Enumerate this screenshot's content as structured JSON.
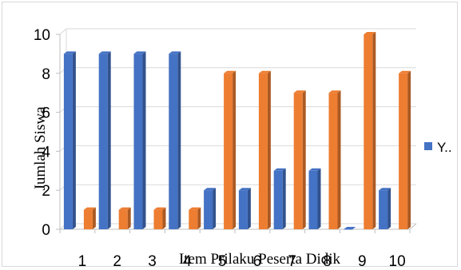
{
  "chart_data": {
    "type": "bar",
    "style": "3d-clustered-column",
    "categories": [
      "1",
      "2",
      "3",
      "4",
      "5",
      "6",
      "7",
      "8",
      "9",
      "10"
    ],
    "series": [
      {
        "name": "",
        "color": "#4472c4",
        "values": [
          9,
          9,
          9,
          9,
          2,
          2,
          3,
          3,
          0,
          2
        ]
      },
      {
        "name": "",
        "color": "#ed7d31",
        "values": [
          1,
          1,
          1,
          1,
          8,
          8,
          7,
          7,
          10,
          8
        ]
      }
    ],
    "title": "",
    "xlabel": "Item Prilaku Peserta Didik",
    "ylabel": "Jumlah Siswa",
    "ylim": [
      0,
      10
    ],
    "yticks": [
      "0",
      "2",
      "4",
      "6",
      "8",
      "10"
    ],
    "grid": true,
    "legend": {
      "position": "right",
      "entries": [
        "Y.."
      ],
      "color": "#4472c4"
    }
  }
}
